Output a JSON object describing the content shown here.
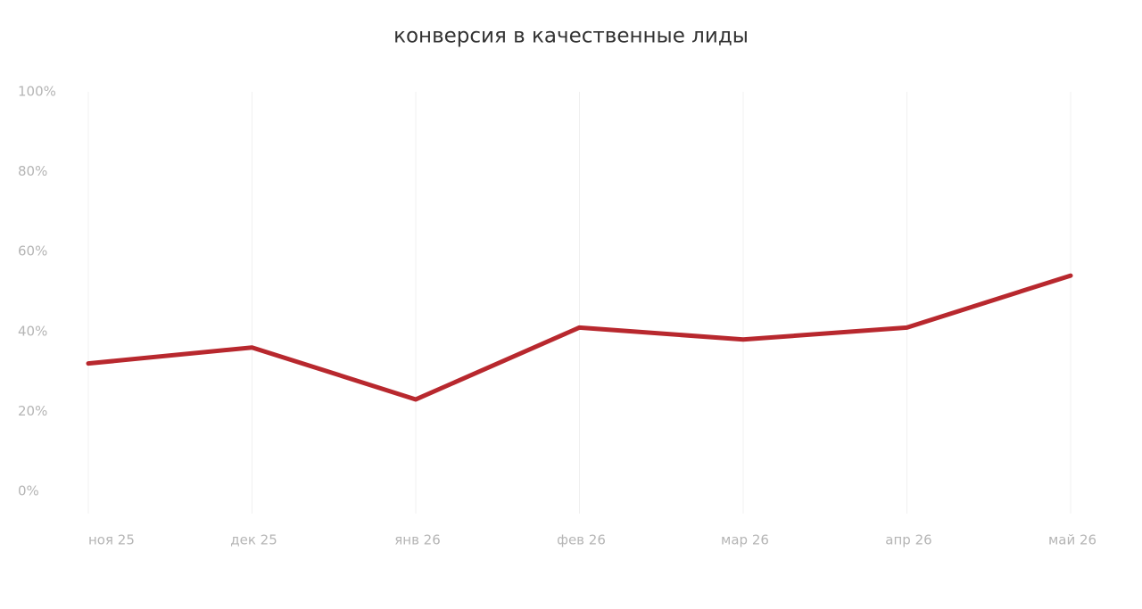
{
  "chart_data": {
    "type": "line",
    "title": "конверсия в качественные лиды",
    "categories": [
      "ноя 25",
      "дек 25",
      "янв 26",
      "фев 26",
      "мар 26",
      "апр 26",
      "май 26"
    ],
    "series": [
      {
        "name": "конверсия",
        "color": "#b8282e",
        "values": [
          32,
          36,
          23,
          41,
          38,
          41,
          54
        ]
      }
    ],
    "ylim": [
      0,
      100
    ],
    "yticks": [
      {
        "value": 0,
        "label": "0%"
      },
      {
        "value": 20,
        "label": "20%"
      },
      {
        "value": 40,
        "label": "40%"
      },
      {
        "value": 60,
        "label": "60%"
      },
      {
        "value": 80,
        "label": "80%"
      },
      {
        "value": 100,
        "label": "100%"
      }
    ],
    "grid": true
  }
}
